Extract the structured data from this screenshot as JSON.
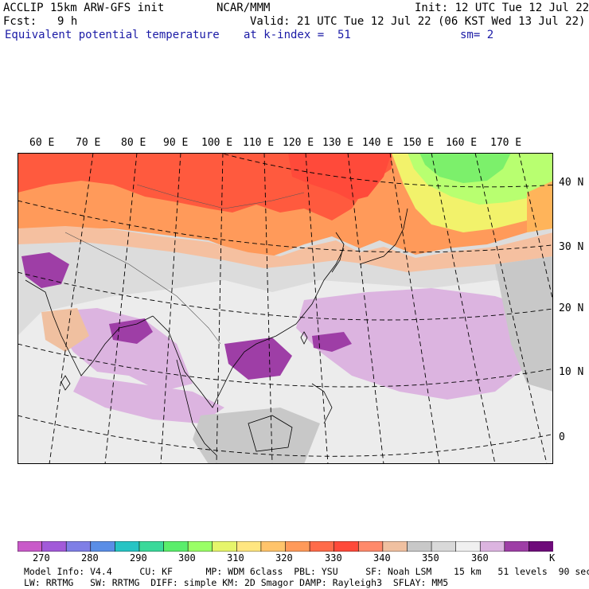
{
  "header": {
    "model": "ACCLIP 15km ARW-GFS init",
    "org": "NCAR/MMM",
    "init": "Init: 12 UTC Tue 12 Jul 22",
    "fcst_label": "Fcst:",
    "fcst_value": "9 h",
    "valid": "Valid: 21 UTC Tue 12 Jul 22 (06 KST Wed 13 Jul 22)",
    "field": "Equivalent potential temperature",
    "level": "at k-index =  51",
    "smooth": "sm= 2"
  },
  "map": {
    "lon_labels": [
      "60 E",
      "70 E",
      "80 E",
      "90 E",
      "100 E",
      "110 E",
      "120 E",
      "130 E",
      "140 E",
      "150 E",
      "160 E",
      "170 E"
    ],
    "lat_labels": [
      "40 N",
      "30 N",
      "20 N",
      "10 N",
      "0"
    ]
  },
  "colorbar": {
    "unit": "K",
    "ticks": [
      "270",
      "280",
      "290",
      "300",
      "310",
      "320",
      "330",
      "340",
      "350",
      "360"
    ],
    "colors": [
      "#c95ac9",
      "#a25ad9",
      "#7f7fe6",
      "#5a8ee6",
      "#27c4c4",
      "#3ad99a",
      "#5aee6b",
      "#9aff66",
      "#e6f56b",
      "#ffe680",
      "#ffc46b",
      "#ff9a5a",
      "#ff6b4a",
      "#ff4a3a",
      "#ff8a6b",
      "#f0c0a0",
      "#c8c8c8",
      "#d9d9d9",
      "#f0f0f0",
      "#dcb4e0",
      "#9e3ea6",
      "#6e0a7a"
    ]
  },
  "footer": {
    "line1": "Model Info: V4.4     CU: KF      MP: WDM 6class  PBL: YSU     SF: Noah LSM    15 km   51 levels  90 sec",
    "line2": "LW: RRTMG   SW: RRTMG  DIFF: simple KM: 2D Smagor DAMP: Rayleigh3  SFLAY: MM5"
  }
}
